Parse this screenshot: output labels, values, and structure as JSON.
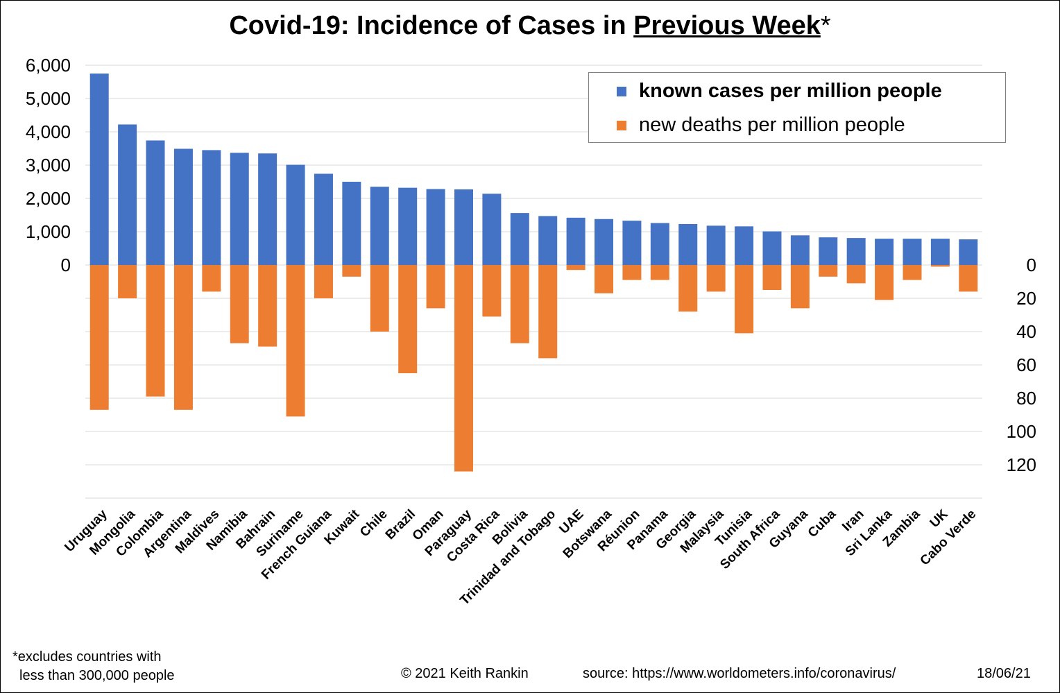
{
  "title": {
    "prefix": "Covid-19: Incidence of Cases in ",
    "emphasis": "Previous Week",
    "suffix": "*"
  },
  "legend": {
    "cases_label": "known cases per million people",
    "deaths_label": "new deaths per million people"
  },
  "footnote": {
    "line1": "*excludes countries with",
    "line2": "less than 300,000  people"
  },
  "credits": {
    "copyright": "© 2021   Keith Rankin",
    "source": "source: https://www.worldometers.info/coronavirus/",
    "date": "18/06/21"
  },
  "colors": {
    "cases": "#4472C4",
    "deaths": "#ED7D31",
    "grid": "#D9D9D9"
  },
  "chart_data": {
    "type": "bar",
    "categories": [
      "Uruguay",
      "Mongolia",
      "Colombia",
      "Argentina",
      "Maldives",
      "Namibia",
      "Bahrain",
      "Suriname",
      "French Guiana",
      "Kuwait",
      "Chile",
      "Brazil",
      "Oman",
      "Paraguay",
      "Costa Rica",
      "Bolivia",
      "Trinidad and Tobago",
      "UAE",
      "Botswana",
      "Réunion",
      "Panama",
      "Georgia",
      "Malaysia",
      "Tunisia",
      "South Africa",
      "Guyana",
      "Cuba",
      "Iran",
      "Sri Lanka",
      "Zambia",
      "UK",
      "Cabo Verde"
    ],
    "series": [
      {
        "name": "known cases per million people",
        "axis": "left",
        "values": [
          5750,
          4220,
          3740,
          3490,
          3450,
          3370,
          3350,
          3010,
          2740,
          2500,
          2350,
          2320,
          2280,
          2270,
          2140,
          1560,
          1470,
          1420,
          1380,
          1330,
          1260,
          1230,
          1180,
          1160,
          1010,
          890,
          830,
          810,
          790,
          790,
          790,
          770
        ]
      },
      {
        "name": "new deaths per million people",
        "axis": "right",
        "values": [
          87,
          20,
          79,
          87,
          16,
          47,
          49,
          91,
          20,
          7,
          40,
          65,
          26,
          124,
          31,
          47,
          56,
          3,
          17,
          9,
          9,
          28,
          16,
          41,
          15,
          26,
          7,
          11,
          21,
          9,
          1,
          16
        ]
      }
    ],
    "left_axis": {
      "ticks": [
        "6,000",
        "5,000",
        "4,000",
        "3,000",
        "2,000",
        "1,000",
        "0"
      ],
      "ylim": [
        0,
        6000
      ]
    },
    "right_axis": {
      "ticks": [
        "0",
        "20",
        "40",
        "60",
        "80",
        "100",
        "120"
      ],
      "ylim": [
        0,
        140
      ],
      "direction": "downward"
    },
    "grid": true,
    "legend_position": "top-right"
  }
}
